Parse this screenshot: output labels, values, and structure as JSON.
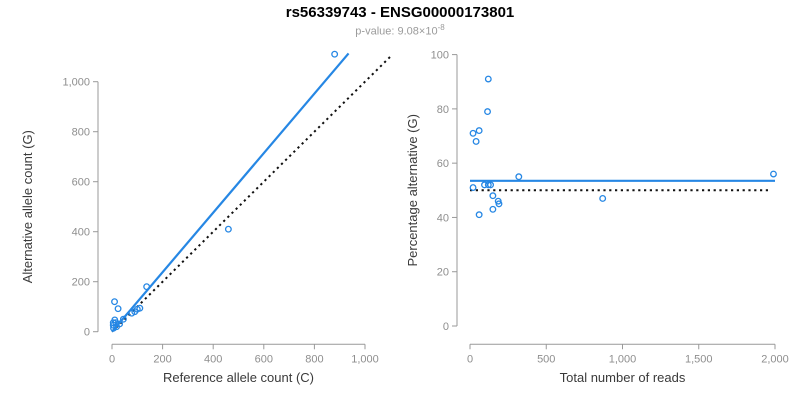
{
  "colors": {
    "blue": "#2687e4",
    "dotted_black": "#111111",
    "axis_line": "#999999",
    "tick_label": "#8e8e8e",
    "axis_title": "#3a3a3a",
    "title": "#000000",
    "subtitle": "#9b9b9b",
    "background": "#ffffff"
  },
  "chart_data": [
    {
      "panel": "left",
      "type": "scatter",
      "title": "rs56339743 - ENSG00000173801",
      "subtitle_prefix": "p-value: 9.08×10",
      "subtitle_exponent": "-8",
      "xlabel": "Reference allele count (C)",
      "ylabel": "Alternative allele count (G)",
      "xlim": [
        0,
        1100
      ],
      "ylim": [
        0,
        1130
      ],
      "grid": false,
      "legend": "none",
      "xticks": {
        "values": [
          0,
          200,
          400,
          600,
          800,
          1000
        ],
        "labels": [
          "0",
          "200",
          "400",
          "600",
          "800",
          "1,000"
        ]
      },
      "yticks": {
        "values": [
          0,
          200,
          400,
          600,
          800,
          1000
        ],
        "labels": [
          "0",
          "200",
          "400",
          "600",
          "800",
          "1,000"
        ]
      },
      "points": [
        [
          10,
          120
        ],
        [
          24,
          92
        ],
        [
          11,
          47
        ],
        [
          5,
          36
        ],
        [
          15,
          36
        ],
        [
          5,
          26
        ],
        [
          18,
          20
        ],
        [
          30,
          31
        ],
        [
          6,
          14
        ],
        [
          45,
          50
        ],
        [
          78,
          74
        ],
        [
          90,
          80
        ],
        [
          100,
          90
        ],
        [
          110,
          94
        ],
        [
          137,
          180
        ],
        [
          460,
          410
        ],
        [
          880,
          1110
        ]
      ],
      "lines": [
        {
          "name": "identity-dotted-line",
          "style": "dotted",
          "color": "#111111",
          "width": 2,
          "x": [
            0,
            1105
          ],
          "y": [
            0,
            1105
          ]
        },
        {
          "name": "regression-line",
          "style": "solid",
          "color": "#2687e4",
          "width": 2.2,
          "x": [
            0,
            935
          ],
          "y": [
            0,
            1113
          ]
        }
      ]
    },
    {
      "panel": "right",
      "type": "scatter",
      "xlabel": "Total number of reads",
      "ylabel": "Percentage alternative (G)",
      "xlim": [
        0,
        2000
      ],
      "ylim": [
        0,
        100
      ],
      "grid": false,
      "legend": "none",
      "xticks": {
        "values": [
          0,
          500,
          1000,
          1500,
          2000
        ],
        "labels": [
          "0",
          "500",
          "1,000",
          "1,500",
          "2,000"
        ]
      },
      "yticks": {
        "values": [
          0,
          20,
          40,
          60,
          80,
          100
        ],
        "labels": [
          "0",
          "20",
          "40",
          "60",
          "80",
          "100"
        ]
      },
      "points": [
        [
          120,
          91
        ],
        [
          115,
          79
        ],
        [
          20,
          71
        ],
        [
          60,
          72
        ],
        [
          40,
          68
        ],
        [
          320,
          55
        ],
        [
          20,
          51
        ],
        [
          95,
          52
        ],
        [
          120,
          52
        ],
        [
          135,
          52
        ],
        [
          1990,
          56
        ],
        [
          150,
          48
        ],
        [
          185,
          46
        ],
        [
          190,
          45
        ],
        [
          870,
          47
        ],
        [
          60,
          41
        ],
        [
          150,
          43
        ]
      ],
      "lines": [
        {
          "name": "expected-50pct-dotted-line",
          "style": "dotted",
          "color": "#111111",
          "width": 2,
          "x": [
            0,
            1955
          ],
          "y": [
            50,
            50
          ]
        },
        {
          "name": "mean-percentage-line",
          "style": "solid",
          "color": "#2687e4",
          "width": 2.2,
          "x": [
            0,
            2000
          ],
          "y": [
            53.5,
            53.5
          ]
        }
      ]
    }
  ]
}
